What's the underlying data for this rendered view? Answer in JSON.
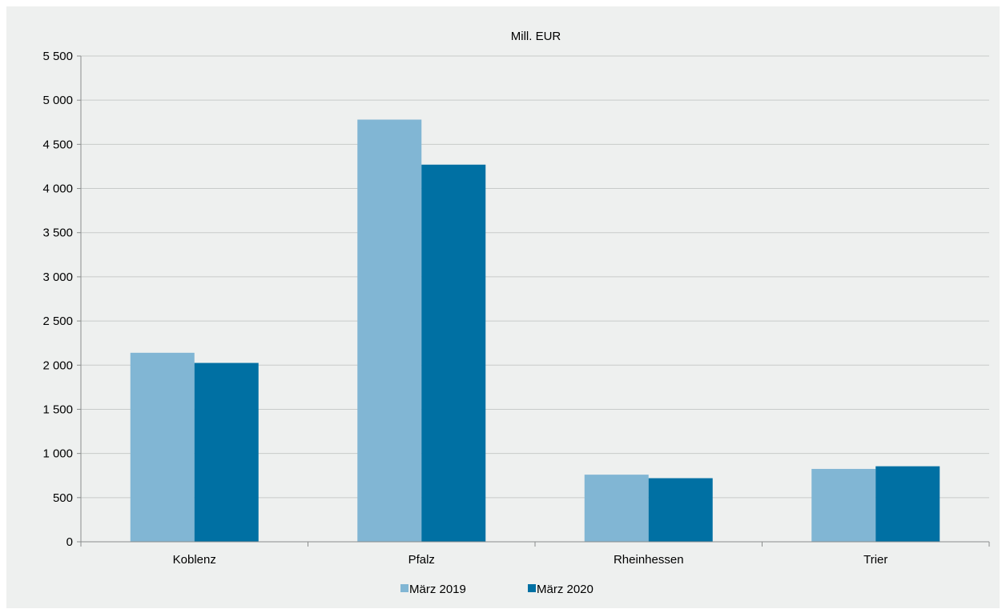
{
  "chart_data": {
    "type": "bar",
    "title": "Mill. EUR",
    "categories": [
      "Koblenz",
      "Pfalz",
      "Rheinhessen",
      "Trier"
    ],
    "series": [
      {
        "name": "März 2019",
        "values": [
          2140,
          4780,
          760,
          825
        ],
        "color": "#81b6d4"
      },
      {
        "name": "März 2020",
        "values": [
          2025,
          4270,
          720,
          855
        ],
        "color": "#0070a3"
      }
    ],
    "ylim": [
      0,
      5500
    ],
    "yticks": [
      0,
      500,
      1000,
      1500,
      2000,
      2500,
      3000,
      3500,
      4000,
      4500,
      5000,
      5500
    ],
    "ytick_labels": [
      "0",
      "500",
      "1 000",
      "1 500",
      "2 000",
      "2 500",
      "3 000",
      "3 500",
      "4 000",
      "4 500",
      "5 000",
      "5 500"
    ],
    "grid": true,
    "legend_position": "bottom"
  },
  "colors": {
    "background": "#eef0ef",
    "gridline": "#c8cbca",
    "axis": "#8a8d8c"
  }
}
